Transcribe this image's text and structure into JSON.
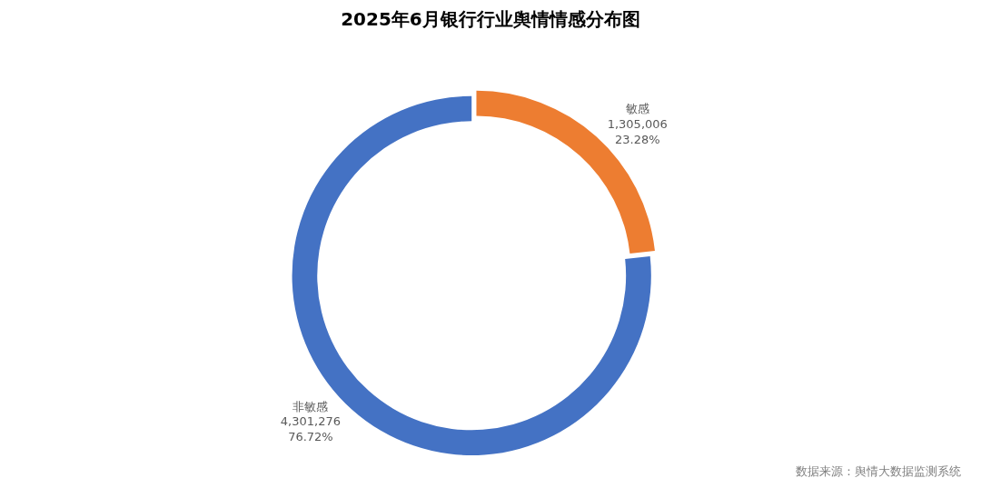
{
  "chart_data": {
    "type": "donut",
    "title": "2025年6月银行行业舆情情感分布图",
    "categories": [
      "敏感",
      "非敏感"
    ],
    "values": [
      1305006,
      4301276
    ],
    "colors": [
      "#ed7d31",
      "#4472c4"
    ],
    "value_labels": [
      "1,305,006\n23.28%",
      "4,301,276\n76.72%"
    ],
    "annotations": [
      "数据来源：舆情大数据监测系统"
    ],
    "legend": false
  }
}
